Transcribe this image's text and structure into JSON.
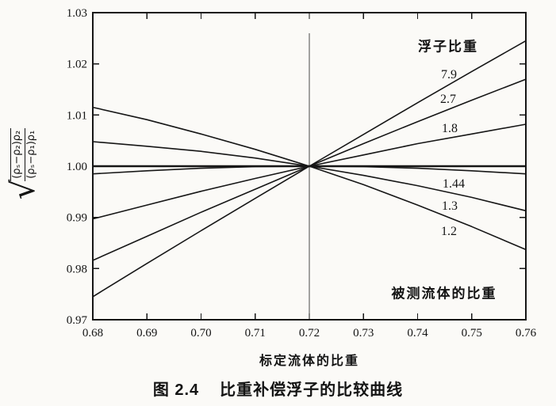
{
  "figure": {
    "caption_number": "图 2.4",
    "caption_title": "比重补偿浮子的比较曲线"
  },
  "chart_data": {
    "type": "line",
    "title": "",
    "xlabel": "标定流体的比重",
    "ylabel": "√[(ρₛ−ρ₂)ρ₂/(ρₛ−ρ₁)ρ₁]",
    "ylabel_radical": "√",
    "ylabel_numerator": "(ρₛ−ρ₂)ρ₂",
    "ylabel_denominator": "(ρₛ−ρ₁)ρ₁",
    "legend_title": "浮子比重",
    "annotation": "被测流体的比重",
    "xlim": [
      0.68,
      0.76
    ],
    "ylim": [
      0.97,
      1.03
    ],
    "grid": false,
    "legend_position": "inside-right",
    "x_tick_labels": [
      "0.68",
      "0.69",
      "0.70",
      "0.71",
      "0.72",
      "0.73",
      "0.74",
      "0.75",
      "0.76"
    ],
    "y_tick_labels": [
      "1.03",
      "1.02",
      "1.01",
      "1.00",
      "0.99",
      "0.98",
      "0.97"
    ],
    "x": [
      0.68,
      0.69,
      0.7,
      0.71,
      0.72,
      0.73,
      0.74,
      0.75,
      0.76
    ],
    "series": [
      {
        "name": "7.9",
        "values": [
          0.9745,
          0.981,
          0.9874,
          0.9937,
          1.0,
          1.0062,
          1.0124,
          1.0185,
          1.0245
        ]
      },
      {
        "name": "2.7",
        "values": [
          0.9816,
          0.9863,
          0.991,
          0.9955,
          1.0,
          1.0044,
          1.0087,
          1.0129,
          1.017
        ]
      },
      {
        "name": "1.8",
        "values": [
          0.9897,
          0.9924,
          0.9951,
          0.9976,
          1.0,
          1.0022,
          1.0044,
          1.0063,
          1.0082
        ]
      },
      {
        "name": "1.44",
        "values": [
          0.9985,
          0.9991,
          0.9996,
          0.9999,
          1.0,
          0.9999,
          0.9996,
          0.9991,
          0.9985
        ]
      },
      {
        "name": "1.3",
        "values": [
          1.0048,
          1.0039,
          1.0029,
          1.0016,
          1.0,
          0.9982,
          0.9962,
          0.9939,
          0.9913
        ]
      },
      {
        "name": "1.2",
        "values": [
          1.0115,
          1.0091,
          1.0063,
          1.0033,
          1.0,
          0.9964,
          0.9924,
          0.9882,
          0.9837
        ]
      }
    ],
    "reference": {
      "horizontal_y": 1.0,
      "vertical_x": 0.72
    },
    "axis_color": "#161616",
    "curve_color": "#161616"
  }
}
